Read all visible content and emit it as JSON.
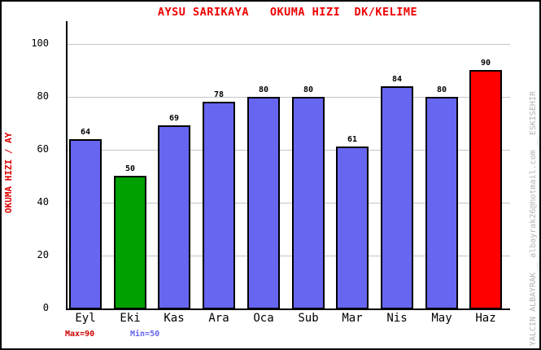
{
  "chart_data": {
    "type": "bar",
    "title": "AYSU SARIKAYA   OKUMA HIZI  DK/KELIME",
    "ylabel": "OKUMA HIZI / AY",
    "xlabel": "",
    "categories": [
      "Eyl",
      "Eki",
      "Kas",
      "Ara",
      "Oca",
      "Sub",
      "Mar",
      "Nis",
      "May",
      "Haz"
    ],
    "values": [
      64,
      50,
      69,
      78,
      80,
      80,
      61,
      84,
      80,
      90
    ],
    "bar_colors": [
      "#6666F0",
      "#00A000",
      "#6666F0",
      "#6666F0",
      "#6666F0",
      "#6666F0",
      "#6666F0",
      "#6666F0",
      "#6666F0",
      "#FF0000"
    ],
    "ylim": [
      0,
      100
    ],
    "yticks": [
      0,
      20,
      40,
      60,
      80,
      100
    ],
    "grid": true,
    "legend_position": "none",
    "annotations": [
      "Max=90",
      "Min=50"
    ]
  },
  "footer": {
    "max_label": "Max=90",
    "min_label": "Min=50"
  },
  "watermark": "YALCIN ALBAYRAK _ albayrak26@hotmail.com _ ESKISEHIR",
  "colors": {
    "title_text": "#EE0000",
    "y_axis_title_text": "#DD0000",
    "max_text": "#CC0000",
    "min_text": "#6666EE",
    "grid_line": "#C4C4C4",
    "axis_line": "#000000",
    "watermark_text": "#B4B4B4",
    "background": "#FFFFFF"
  }
}
